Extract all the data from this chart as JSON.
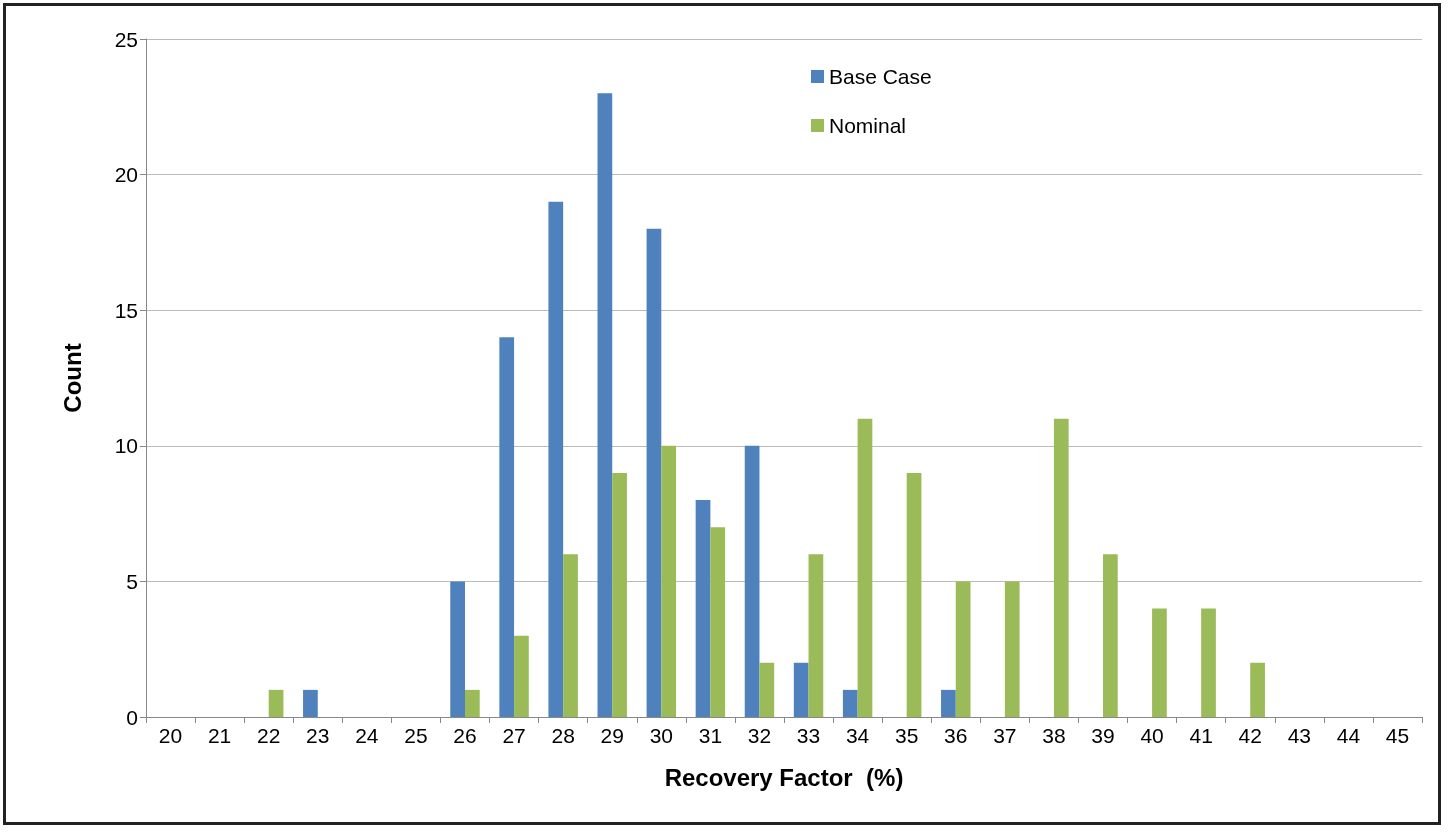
{
  "chart_data": {
    "type": "bar",
    "xlabel": "Recovery Factor  (%)",
    "ylabel": "Count",
    "categories": [
      "20",
      "21",
      "22",
      "23",
      "24",
      "25",
      "26",
      "27",
      "28",
      "29",
      "30",
      "31",
      "32",
      "33",
      "34",
      "35",
      "36",
      "37",
      "38",
      "39",
      "40",
      "41",
      "42",
      "43",
      "44",
      "45"
    ],
    "series": [
      {
        "name": "Base Case",
        "color": "#4f81bd",
        "values": [
          0,
          0,
          0,
          1,
          0,
          0,
          5,
          14,
          19,
          23,
          18,
          8,
          10,
          2,
          1,
          0,
          1,
          0,
          0,
          0,
          0,
          0,
          0,
          0,
          0,
          0
        ]
      },
      {
        "name": "Nominal",
        "color": "#9bbb59",
        "values": [
          0,
          0,
          1,
          0,
          0,
          0,
          1,
          3,
          6,
          9,
          10,
          7,
          2,
          6,
          11,
          9,
          5,
          5,
          11,
          6,
          4,
          4,
          2,
          0,
          0,
          0
        ]
      }
    ],
    "ylim": [
      0,
      25
    ],
    "yticks": [
      0,
      5,
      10,
      15,
      20,
      25
    ],
    "grid": "y",
    "legend": "top right"
  }
}
